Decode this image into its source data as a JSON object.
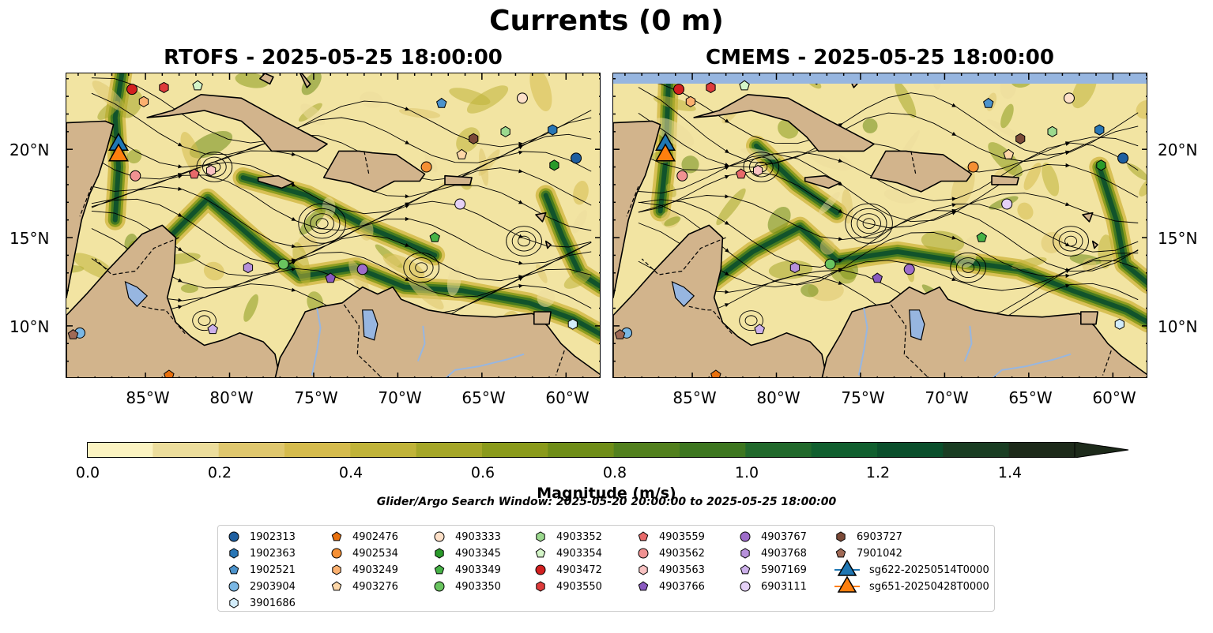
{
  "figure": {
    "suptitle": "Currents (0 m)",
    "panels": [
      {
        "title": "RTOFS - 2025-05-25 18:00:00"
      },
      {
        "title": "CMEMS - 2025-05-25 18:00:00"
      }
    ],
    "lon_labels": [
      "85°W",
      "80°W",
      "75°W",
      "70°W",
      "65°W",
      "60°W"
    ],
    "lat_labels": [
      "20°N",
      "15°N",
      "10°N"
    ],
    "colorbar": {
      "label": "Magnitude (m/s)",
      "ticks": [
        "0.0",
        "0.2",
        "0.4",
        "0.6",
        "0.8",
        "1.0",
        "1.2",
        "1.4"
      ],
      "min": 0.0,
      "max": 1.5,
      "step": 0.1,
      "extend": "max",
      "colors": [
        "#fbf3c1",
        "#ecdd9c",
        "#dfc76e",
        "#d5bb4d",
        "#c0b339",
        "#a5a628",
        "#8a9a1b",
        "#6f8d18",
        "#52801e",
        "#3d7620",
        "#22692c",
        "#115f2f",
        "#0b4f2c",
        "#1a3d23",
        "#1d2a1a"
      ]
    },
    "search_window": "Glider/Argo Search Window: 2025-05-20 20:00:00 to 2025-05-25 18:00:00",
    "colors": {
      "land": "#d2b48c",
      "water_body": "#97b6e0",
      "ocean_low": "#f2e4a2"
    }
  },
  "legend": {
    "items": [
      {
        "label": "1902313",
        "marker": "circle",
        "color": "#1f5fa0"
      },
      {
        "label": "1902363",
        "marker": "hexagon",
        "color": "#2876b5"
      },
      {
        "label": "1902521",
        "marker": "pentagon",
        "color": "#4c93cc"
      },
      {
        "label": "2903904",
        "marker": "circle",
        "color": "#7ab7e4"
      },
      {
        "label": "3901686",
        "marker": "hexagon",
        "color": "#d2ecfa"
      },
      {
        "label": "4902476",
        "marker": "pentagon",
        "color": "#e8700e"
      },
      {
        "label": "4902534",
        "marker": "circle",
        "color": "#f58f33"
      },
      {
        "label": "4903249",
        "marker": "hexagon",
        "color": "#fbb06f"
      },
      {
        "label": "4903276",
        "marker": "pentagon",
        "color": "#fdd7a8"
      },
      {
        "label": "4903333",
        "marker": "circle",
        "color": "#fde0c8"
      },
      {
        "label": "4903345",
        "marker": "hexagon",
        "color": "#2a9a2a"
      },
      {
        "label": "4903349",
        "marker": "pentagon",
        "color": "#46b246"
      },
      {
        "label": "4903350",
        "marker": "circle",
        "color": "#69c45f"
      },
      {
        "label": "4903352",
        "marker": "hexagon",
        "color": "#9bd98e"
      },
      {
        "label": "4903354",
        "marker": "pentagon",
        "color": "#d4f5c8"
      },
      {
        "label": "4903472",
        "marker": "circle",
        "color": "#d32020"
      },
      {
        "label": "4903550",
        "marker": "hexagon",
        "color": "#de3b3b"
      },
      {
        "label": "4903559",
        "marker": "pentagon",
        "color": "#e86a6a"
      },
      {
        "label": "4903562",
        "marker": "circle",
        "color": "#f19292"
      },
      {
        "label": "4903563",
        "marker": "hexagon",
        "color": "#f8c2c2"
      },
      {
        "label": "4903766",
        "marker": "pentagon",
        "color": "#8a5ac0"
      },
      {
        "label": "4903767",
        "marker": "circle",
        "color": "#9d6cc9"
      },
      {
        "label": "4903768",
        "marker": "hexagon",
        "color": "#b690da"
      },
      {
        "label": "5907169",
        "marker": "pentagon",
        "color": "#ccb0ea"
      },
      {
        "label": "6903111",
        "marker": "circle",
        "color": "#e5d1f7"
      },
      {
        "label": "6903727",
        "marker": "hexagon",
        "color": "#7b4a38"
      },
      {
        "label": "7901042",
        "marker": "pentagon",
        "color": "#a06a56"
      },
      {
        "label": "sg622-20250514T0000",
        "marker": "triangle-line",
        "color": "#1f77b4"
      },
      {
        "label": "sg651-20250428T0000",
        "marker": "triangle-line",
        "color": "#ff7f0e"
      }
    ]
  },
  "floats": [
    {
      "id": "1902313",
      "lon": -59.4,
      "lat": 19.5
    },
    {
      "id": "1902363",
      "lon": -60.8,
      "lat": 21.1
    },
    {
      "id": "1902521",
      "lon": -67.4,
      "lat": 22.6
    },
    {
      "id": "2903904",
      "lon": -88.9,
      "lat": 9.6
    },
    {
      "id": "3901686",
      "lon": -59.6,
      "lat": 10.1
    },
    {
      "id": "4902476",
      "lon": -83.6,
      "lat": 7.2
    },
    {
      "id": "4902534",
      "lon": -68.3,
      "lat": 19.0
    },
    {
      "id": "4903249",
      "lon": -85.1,
      "lat": 22.7
    },
    {
      "id": "4903276",
      "lon": -66.2,
      "lat": 19.7
    },
    {
      "id": "4903333",
      "lon": -62.6,
      "lat": 22.9
    },
    {
      "id": "4903345",
      "lon": -60.7,
      "lat": 19.1
    },
    {
      "id": "4903349",
      "lon": -67.8,
      "lat": 15.0
    },
    {
      "id": "4903350",
      "lon": -76.8,
      "lat": 13.5
    },
    {
      "id": "4903352",
      "lon": -63.6,
      "lat": 21.0
    },
    {
      "id": "4903354",
      "lon": -81.9,
      "lat": 23.6
    },
    {
      "id": "4903472",
      "lon": -85.8,
      "lat": 23.4
    },
    {
      "id": "4903550",
      "lon": -83.9,
      "lat": 23.5
    },
    {
      "id": "4903559",
      "lon": -82.1,
      "lat": 18.6
    },
    {
      "id": "4903562",
      "lon": -85.6,
      "lat": 18.5
    },
    {
      "id": "4903563",
      "lon": -81.1,
      "lat": 18.8
    },
    {
      "id": "4903766",
      "lon": -74.0,
      "lat": 12.7
    },
    {
      "id": "4903767",
      "lon": -72.1,
      "lat": 13.2
    },
    {
      "id": "4903768",
      "lon": -78.9,
      "lat": 13.3
    },
    {
      "id": "5907169",
      "lon": -81.0,
      "lat": 9.8
    },
    {
      "id": "6903111",
      "lon": -66.3,
      "lat": 16.9
    },
    {
      "id": "6903727",
      "lon": -65.5,
      "lat": 20.6
    },
    {
      "id": "7901042",
      "lon": -89.3,
      "lat": 9.5
    }
  ],
  "gliders": [
    {
      "id": "sg622-20250514T0000",
      "lon": -86.6,
      "lat": 20.3
    },
    {
      "id": "sg651-20250428T0000",
      "lon": -86.6,
      "lat": 19.7
    }
  ],
  "map_extent": {
    "lon_min": -89.7,
    "lon_max": -57.9,
    "lat_min": 7.0,
    "lat_max": 24.3
  }
}
